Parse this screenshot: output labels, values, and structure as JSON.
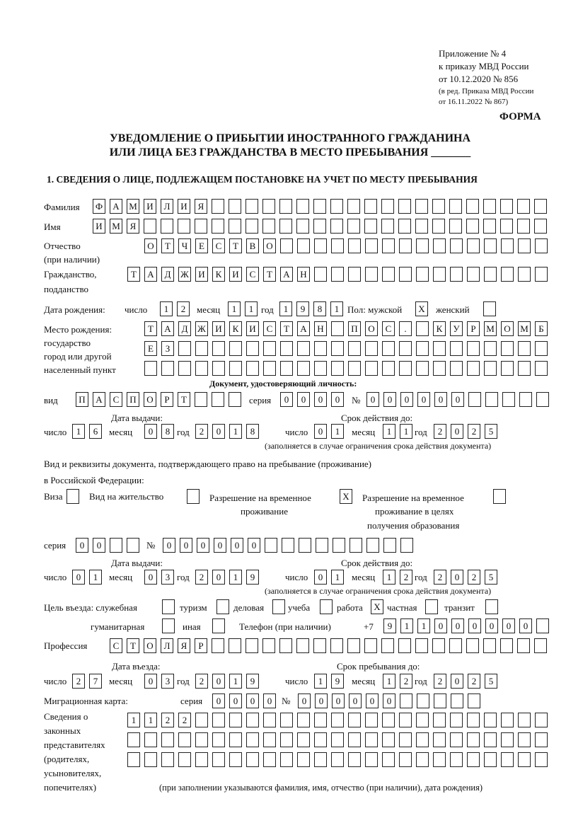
{
  "header": {
    "line1": "Приложение № 4",
    "line2": "к приказу МВД России",
    "line3": "от 10.12.2020 № 856",
    "line4": "(в ред. Приказа МВД России",
    "line5": "от 16.11.2022 № 867)",
    "forma": "ФОРМА"
  },
  "title": {
    "line1": "УВЕДОМЛЕНИЕ О ПРИБЫТИИ ИНОСТРАННОГО ГРАЖДАНИНА",
    "line2": "ИЛИ ЛИЦА БЕЗ ГРАЖДАНСТВА В МЕСТО ПРЕБЫВАНИЯ _______"
  },
  "section1": "1. СВЕДЕНИЯ О ЛИЦЕ, ПОДЛЕЖАЩЕМ ПОСТАНОВКЕ НА УЧЕТ ПО МЕСТУ ПРЕБЫВАНИЯ",
  "labels": {
    "surname": "Фамилия",
    "name": "Имя",
    "patronymic": "Отчество",
    "patronymic2": "(при наличии)",
    "citizenship": "Гражданство,",
    "citizenship2": "подданство",
    "dob": "Дата рождения:",
    "day": "число",
    "month": "месяц",
    "year": "год",
    "sex": "Пол: мужской",
    "female": "женский",
    "pob1": "Место рождения:",
    "pob2": "государство",
    "pob3": "город или другой",
    "pob4": "населенный пункт",
    "iddoc": "Документ, удостоверяющий личность:",
    "kind": "вид",
    "series": "серия",
    "number": "№",
    "issued": "Дата выдачи:",
    "valid": "Срок действия до:",
    "note_valid": "(заполняется в случае ограничения срока действия документа)",
    "rights1": "Вид и реквизиты документа, подтверждающего право на пребывание (проживание)",
    "rights2": "в Российской Федерации:",
    "visa": "Виза",
    "residence": "Вид на жительство",
    "trp1": "Разрешение на временное",
    "trp2": "проживание",
    "trpe1": "Разрешение на временное",
    "trpe2": "проживание в целях",
    "trpe3": "получения образования",
    "purpose": "Цель въезда: служебная",
    "tourism": "туризм",
    "business": "деловая",
    "study": "учеба",
    "work": "работа",
    "private": "частная",
    "transit": "транзит",
    "humanitarian": "гуманитарная",
    "other": "иная",
    "phone": "Телефон (при наличии)",
    "phone_prefix": "+7",
    "profession": "Профессия",
    "entry": "Дата въезда:",
    "stay": "Срок пребывания до:",
    "migcard": "Миграционная карта:",
    "rep1": "Сведения о",
    "rep2": "законных",
    "rep3": "представителях",
    "rep4": "(родителях,",
    "rep5": "усыновителях,",
    "rep6": "попечителях)",
    "rep_note": "(при заполнении указываются фамилия, имя, отчество (при наличии), дата рождения)"
  },
  "fields": {
    "surname": "ФАМИЛИЯ",
    "name": "ИМЯ",
    "patronymic": "ОТЧЕСТВО",
    "citizenship": "ТАДЖИКИСТАН",
    "dob_day": "12",
    "dob_month": "11",
    "dob_year": "1981",
    "sex_male": "X",
    "sex_female": "",
    "pob1": "ТАДЖИКИСТАН ПОС. КУРМОМБ",
    "pob2": "ЕЗ",
    "pob3": "",
    "doc_kind": "ПАСПОРТ",
    "doc_series": "0000",
    "doc_number": "000000",
    "doc_issued_day": "16",
    "doc_issued_month": "08",
    "doc_issued_year": "2018",
    "doc_valid_day": "01",
    "doc_valid_month": "11",
    "doc_valid_year": "2025",
    "visa": "",
    "residence": "",
    "trp": "X",
    "trpe": "",
    "rdoc_series": "00",
    "rdoc_number": "000000",
    "rdoc_issued_day": "01",
    "rdoc_issued_month": "03",
    "rdoc_issued_year": "2019",
    "rdoc_valid_day": "01",
    "rdoc_valid_month": "12",
    "rdoc_valid_year": "2025",
    "p_service": "",
    "p_tourism": "",
    "p_business": "",
    "p_study": "",
    "p_work": "X",
    "p_private": "",
    "p_transit": "",
    "p_humanitarian": "",
    "p_other": "",
    "phone": "911000000",
    "profession": "СТОЛЯР",
    "entry_day": "27",
    "entry_month": "03",
    "entry_year": "2019",
    "stay_day": "19",
    "stay_month": "12",
    "stay_year": "2025",
    "mig_series": "0000",
    "mig_number": "000000",
    "rep1": "1122",
    "rep2": "",
    "rep3": ""
  }
}
